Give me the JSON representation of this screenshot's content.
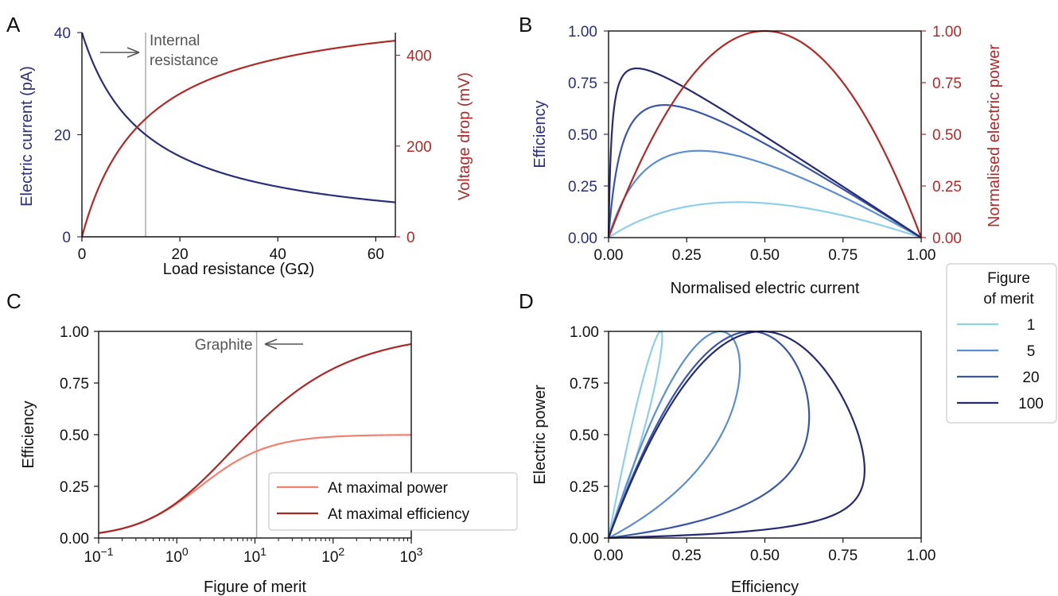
{
  "colors": {
    "current": "#2b2f7a",
    "voltage": "#b02a2a",
    "power_red": "#b02a2a",
    "internal_line": "#aaaaaa",
    "at_max_power": "#f08070",
    "at_max_efficiency": "#a82828",
    "merit": [
      "#8dd0e8",
      "#5b8fcf",
      "#3a56a8",
      "#262a72"
    ]
  },
  "chart_data": [
    {
      "panel": "A",
      "type": "line",
      "xlabel": "Load resistance (GΩ)",
      "ylabel_left": "Electric current (pA)",
      "ylabel_right": "Voltage drop (mV)",
      "xlim": [
        0,
        64
      ],
      "ylim_left": [
        0,
        40
      ],
      "ylim_right": [
        0,
        450
      ],
      "x_ticks": [
        0,
        20,
        40,
        60
      ],
      "y_ticks_left": [
        0,
        20,
        40
      ],
      "y_ticks_right": [
        0,
        200,
        400
      ],
      "internal_resistance": 13,
      "annotation": [
        "Internal",
        "resistance"
      ],
      "series": [
        {
          "axis": "left",
          "formula": "current = 40*13/(13+R)",
          "x": [
            0,
            5,
            13,
            20,
            30,
            40,
            50,
            64
          ],
          "values": [
            40,
            28.9,
            20,
            15.8,
            12.1,
            9.8,
            8.2,
            6.8
          ]
        },
        {
          "axis": "right",
          "formula": "voltage = 520*R/(13+R)",
          "x": [
            0,
            5,
            13,
            20,
            30,
            40,
            50,
            64
          ],
          "values": [
            0,
            144,
            260,
            315,
            363,
            392,
            413,
            432
          ]
        }
      ]
    },
    {
      "panel": "B",
      "type": "line",
      "xlabel": "Normalised electric current",
      "ylabel_left": "Efficiency",
      "ylabel_right": "Normalised electric power",
      "xlim": [
        0,
        1
      ],
      "ylim": [
        0,
        1
      ],
      "ticks": [
        "0.00",
        "0.25",
        "0.50",
        "0.75",
        "1.00"
      ],
      "efficiency_curves_merit": [
        1,
        5,
        20,
        100
      ],
      "power_curve": "P = 4i(1-i)"
    },
    {
      "panel": "C",
      "type": "line",
      "xlabel": "Figure of merit",
      "ylabel": "Efficiency",
      "xscale": "log",
      "xlim": [
        0.1,
        1000
      ],
      "ylim": [
        0,
        1
      ],
      "x_tick_labels": [
        {
          "base": "10",
          "exp": "−1"
        },
        {
          "base": "10",
          "exp": "0"
        },
        {
          "base": "10",
          "exp": "1"
        },
        {
          "base": "10",
          "exp": "2"
        },
        {
          "base": "10",
          "exp": "3"
        }
      ],
      "y_ticks": [
        "0.00",
        "0.25",
        "0.50",
        "0.75",
        "1.00"
      ],
      "graphite_merit": 10.5,
      "annotation": "Graphite",
      "series": [
        {
          "name": "At maximal power",
          "formula": "Z/(2(Z+2))"
        },
        {
          "name": "At maximal efficiency",
          "formula": "(sqrt(1+Z)-1)/(sqrt(1+Z)+1)"
        }
      ]
    },
    {
      "panel": "D",
      "type": "line",
      "xlabel": "Efficiency",
      "ylabel": "Electric power",
      "xlim": [
        0,
        1
      ],
      "ylim": [
        0,
        1
      ],
      "ticks": [
        "0.00",
        "0.25",
        "0.50",
        "0.75",
        "1.00"
      ],
      "legend_title": [
        "Figure",
        "of merit"
      ],
      "legend": [
        "1",
        "5",
        "20",
        "100"
      ],
      "merits": [
        1,
        5,
        20,
        100
      ]
    }
  ],
  "panels": {
    "a": "A",
    "b": "B",
    "c": "C",
    "d": "D"
  }
}
